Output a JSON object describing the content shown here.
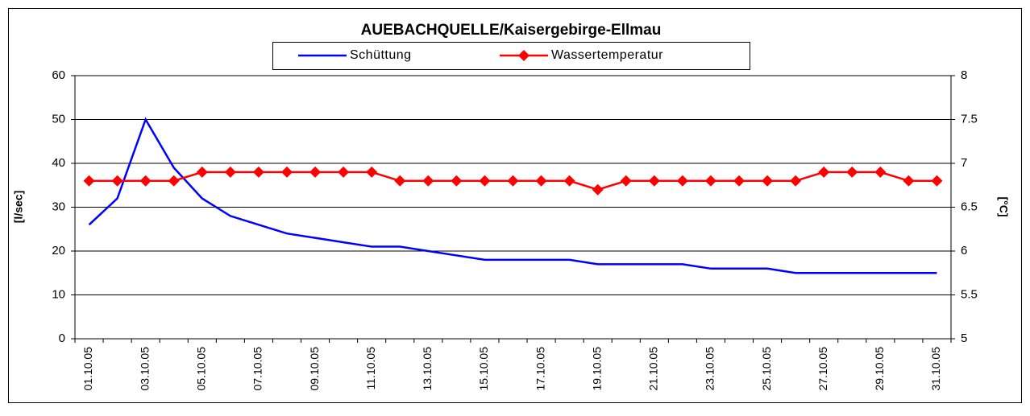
{
  "chart_data": {
    "type": "line",
    "title": "AUEBACHQUELLE/Kaisergebirge-Ellmau",
    "ylabel": "[l/sec]",
    "y2label": "[°C]",
    "categories": [
      "01.10.05",
      null,
      "03.10.05",
      null,
      "05.10.05",
      null,
      "07.10.05",
      null,
      "09.10.05",
      null,
      "11.10.05",
      null,
      "13.10.05",
      null,
      "15.10.05",
      null,
      "17.10.05",
      null,
      "19.10.05",
      null,
      "21.10.05",
      null,
      "23.10.05",
      null,
      "25.10.05",
      null,
      "27.10.05",
      null,
      "29.10.05",
      null,
      "31.10.05"
    ],
    "series": [
      {
        "name": "Schüttung",
        "color": "#0000ff",
        "values": [
          26,
          32,
          50,
          39,
          32,
          28,
          26,
          24,
          23,
          22,
          21,
          21,
          20,
          19,
          18,
          18,
          18,
          18,
          17,
          17,
          17,
          17,
          16,
          16,
          16,
          15,
          15,
          15,
          15,
          15,
          15
        ]
      },
      {
        "name": "Wassertemperatur",
        "color": "#ff0000",
        "axis": "y2",
        "marker": "diamond",
        "values": [
          6.8,
          6.8,
          6.8,
          6.8,
          6.9,
          6.9,
          6.9,
          6.9,
          6.9,
          6.9,
          6.9,
          6.8,
          6.8,
          6.8,
          6.8,
          6.8,
          6.8,
          6.8,
          6.7,
          6.8,
          6.8,
          6.8,
          6.8,
          6.8,
          6.8,
          6.8,
          6.9,
          6.9,
          6.9,
          6.8,
          6.8
        ]
      }
    ],
    "ylim": [
      0,
      60
    ],
    "yticks": [
      0,
      10,
      20,
      30,
      40,
      50,
      60
    ],
    "y2lim": [
      5,
      8
    ],
    "y2ticks": [
      5,
      5.5,
      6,
      6.5,
      7,
      7.5,
      8
    ],
    "grid": true,
    "legend": "top"
  }
}
